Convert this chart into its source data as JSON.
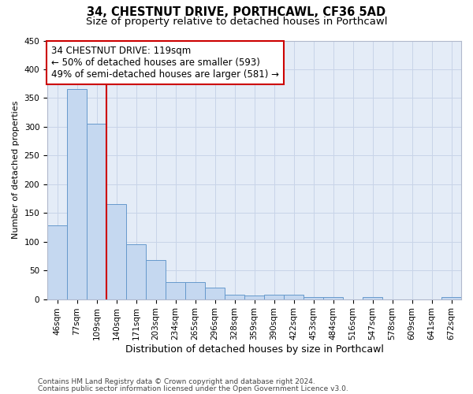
{
  "title1": "34, CHESTNUT DRIVE, PORTHCAWL, CF36 5AD",
  "title2": "Size of property relative to detached houses in Porthcawl",
  "xlabel": "Distribution of detached houses by size in Porthcawl",
  "ylabel": "Number of detached properties",
  "categories": [
    "46sqm",
    "77sqm",
    "109sqm",
    "140sqm",
    "171sqm",
    "203sqm",
    "234sqm",
    "265sqm",
    "296sqm",
    "328sqm",
    "359sqm",
    "390sqm",
    "422sqm",
    "453sqm",
    "484sqm",
    "516sqm",
    "547sqm",
    "578sqm",
    "609sqm",
    "641sqm",
    "672sqm"
  ],
  "values": [
    128,
    365,
    305,
    165,
    95,
    68,
    30,
    30,
    20,
    8,
    6,
    8,
    8,
    4,
    4,
    0,
    4,
    0,
    0,
    0,
    4
  ],
  "bar_color": "#c5d8f0",
  "bar_edgecolor": "#6699cc",
  "bar_linewidth": 0.7,
  "grid_color": "#c8d4e8",
  "bg_color": "#e4ecf7",
  "annotation_line1": "34 CHESTNUT DRIVE: 119sqm",
  "annotation_line2": "← 50% of detached houses are smaller (593)",
  "annotation_line3": "49% of semi-detached houses are larger (581) →",
  "red_line_color": "#cc0000",
  "annotation_box_edgecolor": "#cc0000",
  "footer1": "Contains HM Land Registry data © Crown copyright and database right 2024.",
  "footer2": "Contains public sector information licensed under the Open Government Licence v3.0.",
  "ylim": [
    0,
    450
  ],
  "yticks": [
    0,
    50,
    100,
    150,
    200,
    250,
    300,
    350,
    400,
    450
  ],
  "title1_fontsize": 10.5,
  "title2_fontsize": 9.5,
  "xlabel_fontsize": 9,
  "ylabel_fontsize": 8,
  "tick_fontsize": 7.5,
  "footer_fontsize": 6.5,
  "annotation_fontsize": 8.5
}
